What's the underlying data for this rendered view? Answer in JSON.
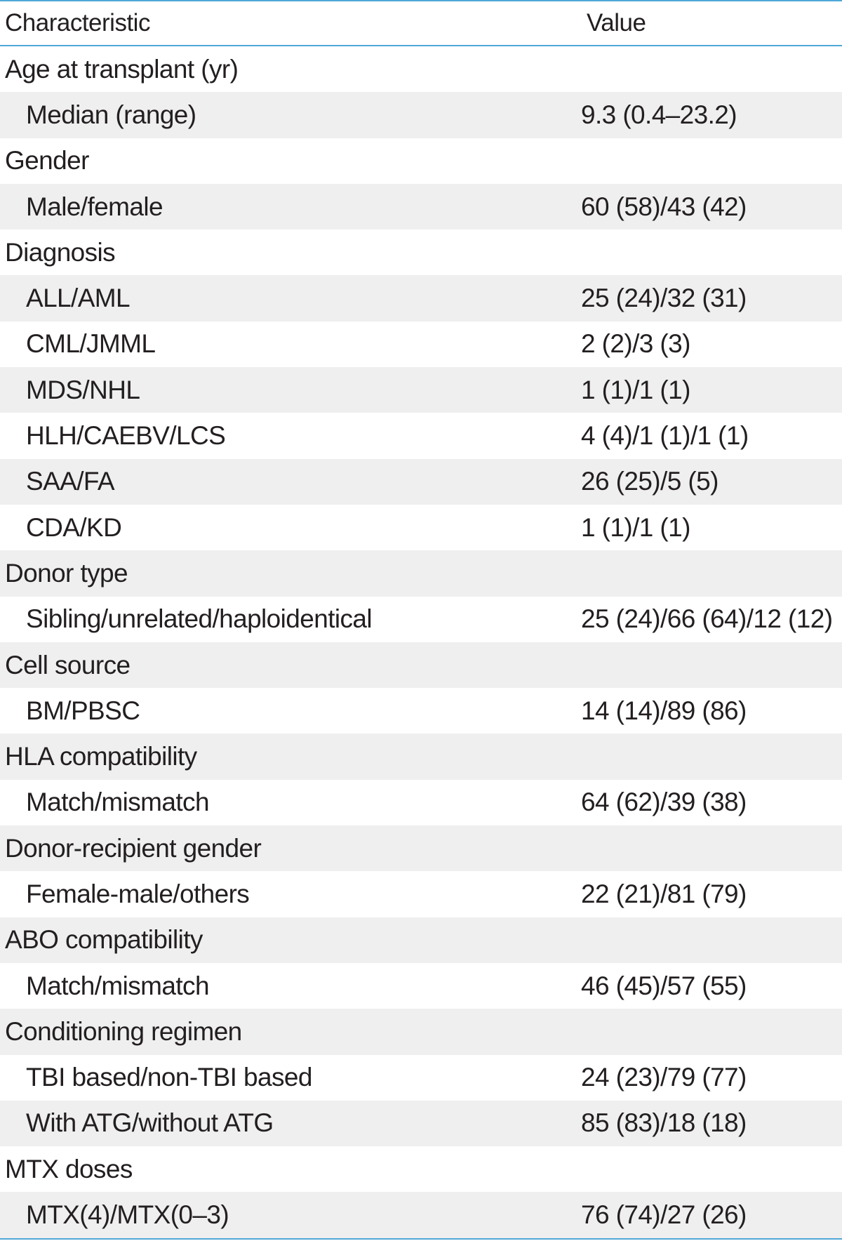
{
  "table": {
    "header": {
      "characteristic": "Characteristic",
      "value": "Value"
    },
    "rows": [
      {
        "label": "Age at transplant (yr)",
        "value": "",
        "level": "group"
      },
      {
        "label": "Median (range)",
        "value": "9.3 (0.4–23.2)",
        "level": "sub"
      },
      {
        "label": "Gender",
        "value": "",
        "level": "group"
      },
      {
        "label": "Male/female",
        "value": "60 (58)/43 (42)",
        "level": "sub"
      },
      {
        "label": "Diagnosis",
        "value": "",
        "level": "group"
      },
      {
        "label": "ALL/AML",
        "value": "25 (24)/32 (31)",
        "level": "sub"
      },
      {
        "label": "CML/JMML",
        "value": "2 (2)/3 (3)",
        "level": "sub"
      },
      {
        "label": "MDS/NHL",
        "value": "1 (1)/1 (1)",
        "level": "sub"
      },
      {
        "label": "HLH/CAEBV/LCS",
        "value": "4 (4)/1 (1)/1 (1)",
        "level": "sub"
      },
      {
        "label": "SAA/FA",
        "value": "26 (25)/5 (5)",
        "level": "sub"
      },
      {
        "label": "CDA/KD",
        "value": "1 (1)/1 (1)",
        "level": "sub"
      },
      {
        "label": "Donor type",
        "value": "",
        "level": "group"
      },
      {
        "label": "Sibling/unrelated/haploidentical",
        "value": "25 (24)/66 (64)/12 (12)",
        "level": "sub"
      },
      {
        "label": "Cell source",
        "value": "",
        "level": "group"
      },
      {
        "label": "BM/PBSC",
        "value": "14 (14)/89 (86)",
        "level": "sub"
      },
      {
        "label": "HLA compatibility",
        "value": "",
        "level": "group"
      },
      {
        "label": "Match/mismatch",
        "value": "64 (62)/39 (38)",
        "level": "sub"
      },
      {
        "label": "Donor-recipient gender",
        "value": "",
        "level": "group"
      },
      {
        "label": "Female-male/others",
        "value": "22 (21)/81 (79)",
        "level": "sub"
      },
      {
        "label": "ABO compatibility",
        "value": "",
        "level": "group"
      },
      {
        "label": "Match/mismatch",
        "value": "46 (45)/57 (55)",
        "level": "sub"
      },
      {
        "label": "Conditioning regimen",
        "value": "",
        "level": "group"
      },
      {
        "label": "TBI based/non-TBI based",
        "value": "24 (23)/79 (77)",
        "level": "sub"
      },
      {
        "label": "With ATG/without ATG",
        "value": "85 (83)/18 (18)",
        "level": "sub"
      },
      {
        "label": "MTX doses",
        "value": "",
        "level": "group"
      },
      {
        "label": "MTX(4)/MTX(0–3)",
        "value": "76 (74)/27 (26)",
        "level": "sub"
      }
    ]
  },
  "colors": {
    "rule": "#4fa8d8",
    "shade": "#efefef",
    "text": "#231f20"
  }
}
